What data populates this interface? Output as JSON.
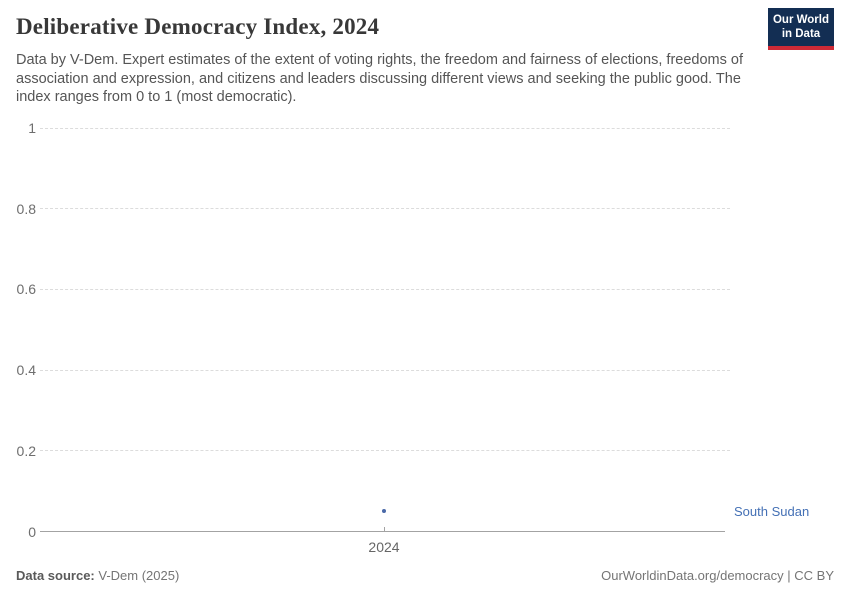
{
  "header": {
    "title": "Deliberative Democracy Index, 2024",
    "subtitle": "Data by V-Dem. Expert estimates of the extent of voting rights, the freedom and fairness of elections, freedoms of association and expression, and citizens and leaders discussing different views and seeking the public good. The index ranges from 0 to 1 (most democratic).",
    "logo": {
      "line1": "Our World",
      "line2": "in Data",
      "bg_color": "#132E53",
      "accent_color": "#CE2A36"
    }
  },
  "chart_data": {
    "type": "scatter",
    "title": "Deliberative Democracy Index, 2024",
    "x": [
      2024
    ],
    "xtick_labels": [
      "2024"
    ],
    "series": [
      {
        "name": "South Sudan",
        "values": [
          0.05
        ],
        "color": "#4A69A8",
        "label_color": "#4470B5"
      }
    ],
    "xlabel": "",
    "ylabel": "",
    "ylim": [
      0,
      1
    ],
    "yticks": [
      0,
      0.2,
      0.4,
      0.6,
      0.8,
      1
    ],
    "ytick_labels": [
      "0",
      "0.2",
      "0.4",
      "0.6",
      "0.8",
      "1"
    ],
    "grid": "horizontal-dashed",
    "gridline_color": "#dcdcdc",
    "axis_color": "#a3a3a3",
    "legend_position": "right-inline-label"
  },
  "footer": {
    "source_label": "Data source:",
    "source_value": " V-Dem (2025)",
    "link": "OurWorldinData.org/democracy | CC BY"
  }
}
